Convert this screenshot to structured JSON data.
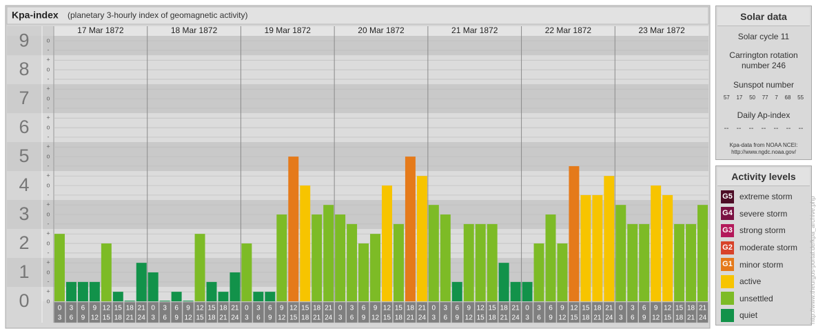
{
  "header": {
    "title": "Kpa-index",
    "subtitle": "(planetary 3-hourly index of geomagnetic activity)"
  },
  "chart_data": {
    "type": "bar",
    "days": [
      "17 Mar 1872",
      "18 Mar 1872",
      "19 Mar 1872",
      "20 Mar 1872",
      "21 Mar 1872",
      "22 Mar 1872",
      "23 Mar 1872"
    ],
    "hours": [
      "0",
      "3",
      "6",
      "9",
      "12",
      "15",
      "18",
      "21",
      "24"
    ],
    "values": [
      2.33,
      0.67,
      0.67,
      0.67,
      2,
      0.33,
      0,
      1.33,
      1,
      0,
      0.33,
      0,
      2.33,
      0.67,
      0.33,
      1,
      2,
      0.33,
      0.33,
      3,
      5,
      4,
      3,
      3.33,
      3,
      2.67,
      2,
      2.33,
      4,
      2.67,
      5,
      4.33,
      3.33,
      3,
      0.67,
      2.67,
      2.67,
      2.67,
      1.33,
      0.67,
      0.67,
      2,
      3,
      2,
      4.67,
      3.67,
      3.67,
      4.33,
      3.33,
      2.67,
      2.67,
      4,
      3.67,
      2.67,
      2.67,
      3.33
    ],
    "colors": [
      "#7dbb26",
      "#12924a",
      "#12924a",
      "#12924a",
      "#7dbb26",
      "#12924a",
      "#12924a",
      "#12924a",
      "#12924a",
      "#12924a",
      "#12924a",
      "#12924a",
      "#7dbb26",
      "#12924a",
      "#12924a",
      "#12924a",
      "#7dbb26",
      "#12924a",
      "#12924a",
      "#7dbb26",
      "#e57a1a",
      "#f7c400",
      "#7dbb26",
      "#7dbb26",
      "#7dbb26",
      "#7dbb26",
      "#7dbb26",
      "#7dbb26",
      "#f7c400",
      "#7dbb26",
      "#e57a1a",
      "#f7c400",
      "#7dbb26",
      "#7dbb26",
      "#12924a",
      "#7dbb26",
      "#7dbb26",
      "#7dbb26",
      "#12924a",
      "#12924a",
      "#12924a",
      "#7dbb26",
      "#7dbb26",
      "#7dbb26",
      "#e57a1a",
      "#f7c400",
      "#f7c400",
      "#f7c400",
      "#7dbb26",
      "#7dbb26",
      "#7dbb26",
      "#f7c400",
      "#f7c400",
      "#7dbb26",
      "#7dbb26",
      "#7dbb26"
    ],
    "ylim": [
      0,
      9.17
    ],
    "yticks": [
      0,
      1,
      2,
      3,
      4,
      5,
      6,
      7,
      8,
      9
    ],
    "minor_ticks": [
      {
        "value": 0,
        "label": "o"
      },
      {
        "value": 0.33,
        "label": "+"
      },
      {
        "value": 0.67,
        "label": "-"
      },
      {
        "value": 1,
        "label": "o"
      },
      {
        "value": 1.33,
        "label": "+"
      },
      {
        "value": 1.67,
        "label": "-"
      },
      {
        "value": 2,
        "label": "o"
      },
      {
        "value": 2.33,
        "label": "+"
      },
      {
        "value": 2.67,
        "label": "-"
      },
      {
        "value": 3,
        "label": "o"
      },
      {
        "value": 3.33,
        "label": "+"
      },
      {
        "value": 3.67,
        "label": "-"
      },
      {
        "value": 4,
        "label": "o"
      },
      {
        "value": 4.33,
        "label": "+"
      },
      {
        "value": 4.67,
        "label": "-"
      },
      {
        "value": 5,
        "label": "o"
      },
      {
        "value": 5.33,
        "label": "+"
      },
      {
        "value": 5.67,
        "label": "-"
      },
      {
        "value": 6,
        "label": "o"
      },
      {
        "value": 6.33,
        "label": "+"
      },
      {
        "value": 6.67,
        "label": "-"
      },
      {
        "value": 7,
        "label": "o"
      },
      {
        "value": 7.33,
        "label": "+"
      },
      {
        "value": 7.67,
        "label": "-"
      },
      {
        "value": 8,
        "label": "o"
      },
      {
        "value": 8.33,
        "label": "+"
      },
      {
        "value": 8.67,
        "label": "-"
      },
      {
        "value": 9,
        "label": "o"
      }
    ],
    "grid": true
  },
  "solar": {
    "title": "Solar data",
    "cycle": "Solar cycle 11",
    "rotation": "Carrington rotation number 246",
    "sunspot_title": "Sunspot number",
    "sunspots": [
      "57",
      "17",
      "50",
      "77",
      "7",
      "68",
      "55"
    ],
    "ap_title": "Daily Ap-index",
    "ap": [
      "--",
      "--",
      "--",
      "--",
      "--",
      "--",
      "--"
    ],
    "source": "Kpa-data from NOAA NCEI:",
    "source_url": "http://www.ngdc.noaa.gov/"
  },
  "levels": {
    "title": "Activity levels",
    "items": [
      {
        "code": "G5",
        "text": "extreme storm",
        "color": "#4d0d26"
      },
      {
        "code": "G4",
        "text": "severe storm",
        "color": "#7a1242"
      },
      {
        "code": "G3",
        "text": "strong storm",
        "color": "#b3195a"
      },
      {
        "code": "G2",
        "text": "moderate storm",
        "color": "#d8432a"
      },
      {
        "code": "G1",
        "text": "minor storm",
        "color": "#e57a1a"
      },
      {
        "text": "active",
        "color": "#f7c400"
      },
      {
        "text": "unsettled",
        "color": "#7dbb26"
      },
      {
        "text": "quiet",
        "color": "#12924a"
      }
    ]
  },
  "credit": "http://www.theurgos-portal.de/kpa_archive.php"
}
